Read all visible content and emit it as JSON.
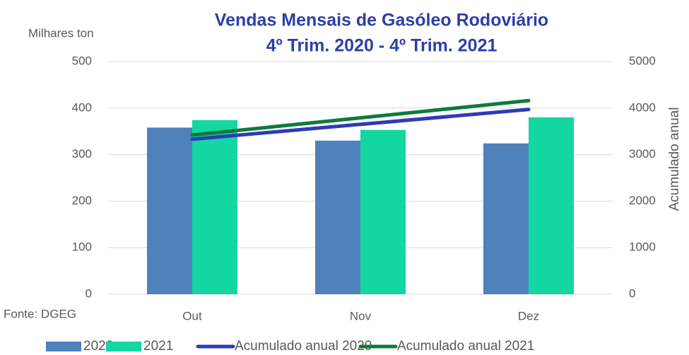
{
  "chart_data": {
    "type": "bar",
    "title": "Vendas  Mensais de Gasóleo Rodoviário",
    "subtitle": "4º Trim. 2020 - 4º Trim. 2021",
    "y_label": "Milhares ton",
    "y2_label": "Acumulado anual",
    "source": "Fonte: DGEG",
    "categories": [
      "Out",
      "Nov",
      "Dez"
    ],
    "series": [
      {
        "name": "2020",
        "color": "#4f81bd",
        "type": "bar",
        "values": [
          358,
          330,
          324
        ]
      },
      {
        "name": "2021",
        "color": "#14d6a0",
        "type": "bar",
        "values": [
          374,
          353,
          380
        ]
      },
      {
        "name": "Acumulado anual 2020",
        "color": "#2e3bb5",
        "type": "line",
        "axis": "y2",
        "values": [
          3330,
          3650,
          3970
        ]
      },
      {
        "name": "Acumulado anual 2021",
        "color": "#0f7a3e",
        "type": "line",
        "axis": "y2",
        "values": [
          3420,
          3790,
          4160
        ]
      }
    ],
    "ylim": [
      0,
      500
    ],
    "yticks": [
      0,
      100,
      200,
      300,
      400,
      500
    ],
    "y2lim": [
      0,
      5000
    ],
    "y2ticks": [
      0,
      1000,
      2000,
      3000,
      4000,
      5000
    ],
    "grid": true,
    "legend": "bottom"
  }
}
